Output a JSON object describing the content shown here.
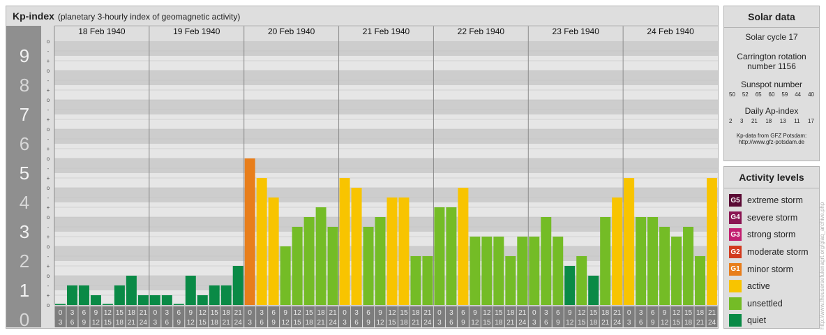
{
  "header": {
    "title": "Kp-index",
    "subtitle": "(planetary 3-hourly index of geomagnetic activity)"
  },
  "chart_data": {
    "type": "bar",
    "ylim": [
      0,
      9
    ],
    "y_ticks": [
      "0",
      "1",
      "2",
      "3",
      "4",
      "5",
      "6",
      "7",
      "8",
      "9"
    ],
    "minor_ticks": [
      "o",
      "+",
      "-"
    ],
    "days": [
      "18 Feb 1940",
      "19 Feb 1940",
      "20 Feb 1940",
      "21 Feb 1940",
      "22 Feb 1940",
      "23 Feb 1940",
      "24 Feb 1940"
    ],
    "interval_tops": [
      "0",
      "3",
      "6",
      "9",
      "12",
      "15",
      "18",
      "21"
    ],
    "interval_bottoms": [
      "3",
      "6",
      "9",
      "12",
      "15",
      "18",
      "21",
      "24"
    ],
    "values": [
      0.0,
      0.667,
      0.667,
      0.333,
      0.0,
      0.667,
      1.0,
      0.333,
      0.333,
      0.333,
      0.0,
      1.0,
      0.333,
      0.667,
      0.667,
      1.333,
      5.0,
      4.333,
      3.667,
      2.0,
      2.667,
      3.0,
      3.333,
      2.667,
      4.333,
      4.0,
      2.667,
      3.0,
      3.667,
      3.667,
      1.667,
      1.667,
      3.333,
      3.333,
      4.0,
      2.333,
      2.333,
      2.333,
      1.667,
      2.333,
      2.333,
      3.0,
      2.333,
      1.333,
      1.667,
      1.0,
      3.0,
      3.667,
      4.333,
      3.0,
      3.0,
      2.667,
      2.333,
      2.667,
      1.667,
      4.333
    ],
    "colors": {
      "quiet": "#0a8a46",
      "unsettled": "#74bc26",
      "active": "#f8c400",
      "minor_storm": "#e87e1b",
      "grid_dark": "#cdcdcd",
      "grid_light": "#e6e6e6",
      "label_column": "#8f8f8f",
      "interval_box": "#7d7d7d"
    }
  },
  "solar": {
    "heading": "Solar data",
    "cycle": "Solar cycle 17",
    "carrington_1": "Carrington rotation",
    "carrington_2": "number 1156",
    "sunspot_label": "Sunspot number",
    "sunspot_values": [
      "50",
      "52",
      "65",
      "60",
      "59",
      "44",
      "40"
    ],
    "ap_label": "Daily Ap-index",
    "ap_values": [
      "2",
      "3",
      "21",
      "18",
      "13",
      "11",
      "17"
    ],
    "credit_1": "Kp-data from GFZ Potsdam:",
    "credit_2": "http://www.gfz-potsdam.de"
  },
  "activity": {
    "heading": "Activity levels",
    "levels": [
      {
        "code": "G5",
        "label": "extreme storm",
        "color": "#5a0a34"
      },
      {
        "code": "G4",
        "label": "severe storm",
        "color": "#8a1552"
      },
      {
        "code": "G3",
        "label": "strong storm",
        "color": "#c21e70"
      },
      {
        "code": "G2",
        "label": "moderate storm",
        "color": "#d23a1e"
      },
      {
        "code": "G1",
        "label": "minor storm",
        "color": "#e87e1b"
      },
      {
        "code": "",
        "label": "active",
        "color": "#f8c400"
      },
      {
        "code": "",
        "label": "unsettled",
        "color": "#74bc26"
      },
      {
        "code": "",
        "label": "quiet",
        "color": "#0a8a46"
      }
    ]
  },
  "watermark": "http://www.theusersefulenagrt.org/glaq_archive.php"
}
